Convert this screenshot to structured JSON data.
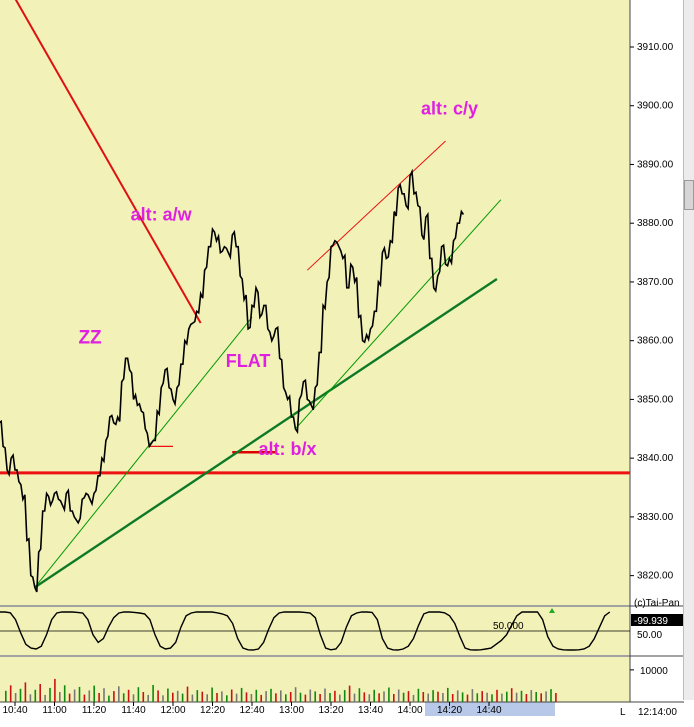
{
  "chart_data": {
    "type": "line",
    "price": {
      "ylim": [
        3815,
        3918
      ],
      "y_ticks": [
        "3910.00",
        "3900.00",
        "3890.00",
        "3880.00",
        "3870.00",
        "3860.00",
        "3850.00",
        "3840.00",
        "3830.00",
        "3820.00"
      ],
      "y_tick_values": [
        3910,
        3900,
        3890,
        3880,
        3870,
        3860,
        3850,
        3840,
        3830,
        3820
      ],
      "series_points": [
        [
          "10:30",
          3850
        ],
        [
          "10:32",
          3846
        ],
        [
          "10:34",
          3842
        ],
        [
          "10:36",
          3838
        ],
        [
          "10:38",
          3840
        ],
        [
          "10:40",
          3838
        ],
        [
          "10:42",
          3836
        ],
        [
          "10:44",
          3833
        ],
        [
          "10:46",
          3826
        ],
        [
          "10:48",
          3820
        ],
        [
          "10:50",
          3818
        ],
        [
          "10:52",
          3824
        ],
        [
          "10:54",
          3831
        ],
        [
          "10:56",
          3834
        ],
        [
          "10:58",
          3832
        ],
        [
          "11:00",
          3834
        ],
        [
          "11:02",
          3833
        ],
        [
          "11:04",
          3832
        ],
        [
          "11:06",
          3834
        ],
        [
          "11:08",
          3831
        ],
        [
          "11:10",
          3830
        ],
        [
          "11:12",
          3829
        ],
        [
          "11:14",
          3833
        ],
        [
          "11:16",
          3834
        ],
        [
          "11:18",
          3833
        ],
        [
          "11:20",
          3834
        ],
        [
          "11:22",
          3837
        ],
        [
          "11:24",
          3840
        ],
        [
          "11:26",
          3843
        ],
        [
          "11:28",
          3847
        ],
        [
          "11:30",
          3846
        ],
        [
          "11:32",
          3847
        ],
        [
          "11:34",
          3853
        ],
        [
          "11:36",
          3857
        ],
        [
          "11:38",
          3855
        ],
        [
          "11:40",
          3850
        ],
        [
          "11:42",
          3849
        ],
        [
          "11:44",
          3848
        ],
        [
          "11:46",
          3845
        ],
        [
          "11:48",
          3842
        ],
        [
          "11:50",
          3843
        ],
        [
          "11:52",
          3848
        ],
        [
          "11:54",
          3852
        ],
        [
          "11:56",
          3855
        ],
        [
          "11:58",
          3852
        ],
        [
          "12:00",
          3850
        ],
        [
          "12:02",
          3852
        ],
        [
          "12:04",
          3856
        ],
        [
          "12:06",
          3860
        ],
        [
          "12:08",
          3862
        ],
        [
          "12:10",
          3863
        ],
        [
          "12:12",
          3865
        ],
        [
          "12:14",
          3868
        ],
        [
          "12:16",
          3872
        ],
        [
          "12:18",
          3876
        ],
        [
          "12:20",
          3879
        ],
        [
          "12:22",
          3877
        ],
        [
          "12:24",
          3875
        ],
        [
          "12:26",
          3876
        ],
        [
          "12:28",
          3875
        ],
        [
          "12:30",
          3878
        ],
        [
          "12:32",
          3876
        ],
        [
          "12:34",
          3871
        ],
        [
          "12:36",
          3867
        ],
        [
          "12:38",
          3862
        ],
        [
          "12:40",
          3866
        ],
        [
          "12:42",
          3869
        ],
        [
          "12:44",
          3864
        ],
        [
          "12:46",
          3866
        ],
        [
          "12:48",
          3862
        ],
        [
          "12:50",
          3860
        ],
        [
          "12:52",
          3862
        ],
        [
          "12:54",
          3857
        ],
        [
          "12:56",
          3852
        ],
        [
          "12:58",
          3850
        ],
        [
          "13:00",
          3847
        ],
        [
          "13:02",
          3845
        ],
        [
          "13:04",
          3850
        ],
        [
          "13:06",
          3853
        ],
        [
          "13:08",
          3850
        ],
        [
          "13:10",
          3849
        ],
        [
          "13:12",
          3852
        ],
        [
          "13:14",
          3858
        ],
        [
          "13:16",
          3866
        ],
        [
          "13:18",
          3870
        ],
        [
          "13:20",
          3876
        ],
        [
          "13:22",
          3877
        ],
        [
          "13:24",
          3876
        ],
        [
          "13:26",
          3874
        ],
        [
          "13:28",
          3869
        ],
        [
          "13:30",
          3873
        ],
        [
          "13:32",
          3870
        ],
        [
          "13:34",
          3864
        ],
        [
          "13:36",
          3860
        ],
        [
          "13:38",
          3861
        ],
        [
          "13:40",
          3862
        ],
        [
          "13:42",
          3865
        ],
        [
          "13:44",
          3870
        ],
        [
          "13:46",
          3875
        ],
        [
          "13:48",
          3874
        ],
        [
          "13:50",
          3877
        ],
        [
          "13:52",
          3882
        ],
        [
          "13:54",
          3886
        ],
        [
          "13:56",
          3885
        ],
        [
          "13:58",
          3883
        ],
        [
          "14:00",
          3888
        ],
        [
          "14:02",
          3885
        ],
        [
          "14:04",
          3883
        ],
        [
          "14:06",
          3878
        ],
        [
          "14:08",
          3881
        ],
        [
          "14:10",
          3874
        ],
        [
          "14:12",
          3869
        ],
        [
          "14:14",
          3871
        ],
        [
          "14:16",
          3876
        ],
        [
          "14:18",
          3873
        ],
        [
          "14:20",
          3874
        ],
        [
          "14:22",
          3877
        ],
        [
          "14:24",
          3880
        ],
        [
          "14:26",
          3882
        ]
      ],
      "horizontal_line": {
        "value": 3837.5,
        "color": "#ee1111"
      },
      "short_lines": [
        {
          "x1": "11:48",
          "x2": "12:00",
          "value": 3842,
          "color": "#ee1111"
        },
        {
          "x1": "12:30",
          "x2": "12:52",
          "value": 3841,
          "color": "#dd0000"
        }
      ],
      "trendlines": [
        {
          "x1": "10:32",
          "y1": 3923,
          "x2": "12:14",
          "y2": 3863,
          "color": "#dd1111",
          "width": 2
        },
        {
          "x1": "10:50",
          "y1": 3818,
          "x2": "12:40",
          "y2": 3864,
          "color": "#009900",
          "width": 1
        },
        {
          "x1": "10:50",
          "y1": 3818,
          "x2": "14:44",
          "y2": 3870.5,
          "color": "#0e7a26",
          "width": 2.4
        },
        {
          "x1": "13:02",
          "y1": 3845,
          "x2": "14:46",
          "y2": 3884,
          "color": "#009900",
          "width": 1
        },
        {
          "x1": "13:08",
          "y1": 3872,
          "x2": "14:18",
          "y2": 3894,
          "color": "#ee1111",
          "width": 1
        }
      ],
      "annotations": [
        {
          "text": "alt: c/y",
          "x": "14:20",
          "y": 3898.5,
          "size": 18
        },
        {
          "text": "alt: a/w",
          "x": "11:54",
          "y": 3880.5,
          "size": 18
        },
        {
          "text": "ZZ",
          "x": "11:18",
          "y": 3859.5,
          "size": 19
        },
        {
          "text": "FLAT",
          "x": "12:38",
          "y": 3855.5,
          "size": 18
        },
        {
          "text": "alt: b/x",
          "x": "12:58",
          "y": 3840.5,
          "size": 18
        }
      ]
    },
    "x_ticks": [
      "10:40",
      "11:00",
      "11:20",
      "11:40",
      "12:00",
      "12:20",
      "12:40",
      "13:00",
      "13:20",
      "13:40",
      "14:00",
      "14:20",
      "14:40"
    ],
    "x_tick_times": [
      "10:40",
      "11:00",
      "11:20",
      "11:40",
      "12:00",
      "12:20",
      "12:40",
      "13:00",
      "13:20",
      "13:40",
      "14:00",
      "14:20",
      "14:40"
    ],
    "oscillator": {
      "value_label": "-99.939",
      "level_label": "50.00",
      "mid_label": "50.000",
      "ylim": [
        -100,
        100
      ],
      "values": [
        100,
        100,
        96,
        60,
        -10,
        -70,
        -90,
        -95,
        -80,
        -20,
        60,
        95,
        100,
        100,
        100,
        98,
        95,
        60,
        -20,
        -60,
        -40,
        20,
        70,
        95,
        100,
        100,
        98,
        95,
        90,
        60,
        -20,
        -80,
        -95,
        -90,
        -60,
        20,
        80,
        95,
        100,
        100,
        100,
        100,
        96,
        90,
        80,
        40,
        -40,
        -90,
        -99,
        -100,
        -95,
        -60,
        10,
        70,
        95,
        100,
        100,
        100,
        100,
        98,
        95,
        70,
        -20,
        -90,
        -99,
        -95,
        -60,
        20,
        80,
        95,
        100,
        100,
        98,
        60,
        -40,
        -90,
        -99,
        -100,
        -95,
        -80,
        -40,
        30,
        90,
        100,
        100,
        100,
        96,
        80,
        40,
        -30,
        -90,
        -99,
        -100,
        -99,
        -95,
        -90,
        -70,
        -50,
        -20,
        30,
        80,
        100,
        100,
        100,
        100,
        60,
        -30,
        -80,
        -95,
        -99,
        -100,
        -100,
        -99,
        -95,
        -80,
        -40,
        20,
        80,
        100
      ]
    },
    "volume": {
      "y_tick": "10000",
      "ylim": [
        0,
        14000
      ],
      "values": [
        3500,
        5200,
        2800,
        4100,
        6100,
        2400,
        3800,
        5600,
        2200,
        4400,
        7200,
        3100,
        5200,
        2600,
        3900,
        4700,
        2300,
        3600,
        5100,
        2800,
        4300,
        2000,
        3400,
        4900,
        2700,
        3800,
        2400,
        4600,
        3100,
        2200,
        5300,
        3600,
        2100,
        4200,
        2900,
        3500,
        2600,
        4800,
        2300,
        3700,
        3200,
        2400,
        4500,
        2800,
        3300,
        2100,
        3900,
        2600,
        4400,
        3000,
        2500,
        3800,
        2200,
        3400,
        4100,
        2700,
        3600,
        2400,
        3100,
        4600,
        2900,
        2300,
        3900,
        3300,
        2500,
        4200,
        2800,
        3500,
        2300,
        3700,
        5100,
        2600,
        4300,
        3000,
        2400,
        3800,
        2700,
        3300,
        4500,
        2500,
        3900,
        2900,
        3400,
        2200,
        4100,
        3100,
        2600,
        3700,
        3200,
        2800,
        4400,
        2500,
        3600,
        3000,
        2300,
        4000,
        2700,
        3400,
        2900,
        2400,
        3800,
        2600,
        3200,
        4300,
        2900,
        3500,
        2500,
        3700,
        3100,
        2700,
        3300,
        4000,
        2800
      ]
    },
    "right_labels": {
      "copyright": "(c)Tai-Pan",
      "time": "12:14:00"
    },
    "bottom_letter": "L",
    "colors": {
      "panel": "#f2f2b8",
      "price": "#000000",
      "annot": "#e020e0",
      "highlight": "#b8c8e8"
    }
  }
}
